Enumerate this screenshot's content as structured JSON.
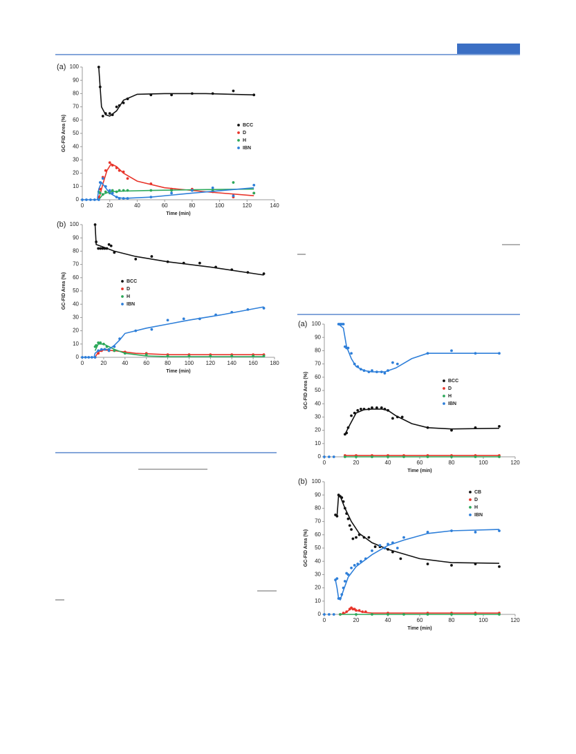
{
  "chart_data": [
    {
      "type": "scatter",
      "label": "(a)",
      "x_label": "Time (min)",
      "y_label": "GC-FID Area (%)",
      "xlim": [
        0,
        140
      ],
      "xticks": [
        0,
        20,
        40,
        60,
        80,
        100,
        120,
        140
      ],
      "ylim": [
        0,
        100
      ],
      "yticks": [
        0,
        10,
        20,
        30,
        40,
        50,
        60,
        70,
        80,
        90,
        100
      ],
      "series": [
        {
          "name": "BCC",
          "color": "#111111",
          "x": [
            12,
            13,
            15,
            17,
            20,
            22,
            25,
            27,
            30,
            33,
            50,
            65,
            80,
            95,
            110,
            125
          ],
          "values": [
            100,
            85,
            63,
            65,
            65,
            64,
            70,
            71,
            73,
            76,
            79,
            79,
            80,
            80,
            82,
            79
          ],
          "fit": {
            "x": [
              12,
              14,
              17,
              20,
              25,
              30,
              40,
              60,
              90,
              125
            ],
            "values": [
              100,
              70,
              64,
              63,
              67,
              75,
              79.5,
              80,
              80,
              79
            ]
          }
        },
        {
          "name": "D",
          "color": "#e8342a",
          "x": [
            12,
            13,
            15,
            17,
            20,
            22,
            25,
            27,
            30,
            33,
            50,
            65,
            80,
            95,
            110,
            125
          ],
          "values": [
            2,
            8,
            17,
            22,
            28,
            26,
            24,
            22,
            21,
            16,
            12,
            8,
            8,
            6,
            2,
            5
          ],
          "fit": {
            "x": [
              12,
              15,
              18,
              21,
              25,
              30,
              40,
              60,
              90,
              125
            ],
            "values": [
              0,
              12,
              22,
              27,
              25,
              20,
              14,
              9,
              6,
              3
            ]
          }
        },
        {
          "name": "H",
          "color": "#2ca85a",
          "x": [
            12,
            13,
            15,
            17,
            20,
            22,
            25,
            27,
            30,
            33,
            50,
            65,
            80,
            95,
            110,
            125
          ],
          "values": [
            6,
            5,
            4,
            6,
            5,
            7,
            6,
            7,
            7,
            7,
            7,
            7,
            7,
            7,
            13,
            5
          ],
          "fit": {
            "x": [
              12,
              15,
              20,
              30,
              50,
              80,
              125
            ],
            "values": [
              0,
              4,
              6,
              6.5,
              7,
              7.5,
              8
            ]
          }
        },
        {
          "name": "IBN",
          "color": "#2e7fd9",
          "x": [
            0,
            3,
            6,
            9,
            12,
            13,
            15,
            17,
            20,
            22,
            25,
            27,
            30,
            33,
            50,
            65,
            80,
            95,
            110,
            125
          ],
          "values": [
            0,
            0,
            0,
            0,
            0,
            13,
            16,
            10,
            7,
            5,
            2,
            1,
            1,
            1,
            2,
            5,
            7,
            9,
            3,
            11
          ],
          "fit": {
            "x": [
              0,
              11,
              12,
              14,
              17,
              20,
              25,
              30,
              50,
              80,
              125
            ],
            "values": [
              0,
              0,
              8,
              13,
              9,
              5,
              2,
              1,
              2,
              5,
              9
            ]
          }
        }
      ]
    },
    {
      "type": "scatter",
      "label": "(b)",
      "x_label": "Time (min)",
      "y_label": "GC-FID Area (%)",
      "xlim": [
        0,
        180
      ],
      "xticks": [
        0,
        20,
        40,
        60,
        80,
        100,
        120,
        140,
        160,
        180
      ],
      "ylim": [
        0,
        100
      ],
      "yticks": [
        0,
        10,
        20,
        30,
        40,
        50,
        60,
        70,
        80,
        90,
        100
      ],
      "series": [
        {
          "name": "BCC",
          "color": "#111111",
          "x": [
            12,
            13,
            15,
            17,
            19,
            21,
            23,
            25,
            27,
            30,
            50,
            65,
            80,
            95,
            110,
            125,
            140,
            155,
            170
          ],
          "values": [
            100,
            87,
            82,
            82,
            82,
            82,
            82,
            85,
            84,
            79,
            74,
            76,
            72,
            71,
            71,
            68,
            66,
            64,
            63
          ],
          "fit": {
            "x": [
              12,
              13,
              20,
              30,
              50,
              80,
              120,
              170
            ],
            "values": [
              100,
              85,
              83,
              80,
              76,
              72,
              68,
              62
            ]
          }
        },
        {
          "name": "D",
          "color": "#e8342a",
          "x": [
            12,
            15,
            18,
            21,
            25,
            30,
            40,
            60,
            80,
            100,
            120,
            140,
            160,
            170
          ],
          "values": [
            0,
            3,
            5,
            6,
            5,
            5,
            4,
            3,
            2,
            2,
            2,
            2,
            2,
            2
          ],
          "fit": {
            "x": [
              12,
              15,
              20,
              30,
              50,
              80,
              170
            ],
            "values": [
              0,
              4,
              5.5,
              5,
              3,
              2,
              2
            ]
          }
        },
        {
          "name": "H",
          "color": "#2ca85a",
          "x": [
            12,
            13,
            15,
            17,
            20,
            23,
            25,
            30,
            40,
            60,
            80,
            100,
            120,
            140,
            160,
            170
          ],
          "values": [
            8,
            9,
            11,
            11,
            10,
            8,
            6,
            5,
            3,
            2,
            1,
            1,
            1,
            1,
            1,
            1
          ],
          "fit": {
            "x": [
              12,
              15,
              20,
              25,
              30,
              40,
              60,
              80,
              170
            ],
            "values": [
              5,
              10,
              10,
              8,
              6,
              3,
              1,
              0.5,
              0.5
            ]
          }
        },
        {
          "name": "IBN",
          "color": "#2e7fd9",
          "x": [
            0,
            3,
            6,
            9,
            12,
            15,
            18,
            21,
            25,
            30,
            35,
            50,
            65,
            80,
            95,
            110,
            125,
            140,
            155,
            170
          ],
          "values": [
            0,
            0,
            0,
            0,
            0,
            5,
            6,
            6,
            5,
            8,
            14,
            20,
            21,
            28,
            29,
            29,
            32,
            34,
            36,
            37
          ],
          "fit": {
            "x": [
              0,
              11,
              12,
              15,
              20,
              25,
              30,
              35,
              40,
              60,
              80,
              100,
              130,
              170
            ],
            "values": [
              0,
              0,
              3,
              5,
              6,
              6,
              9,
              13,
              18,
              22,
              25,
              28,
              32,
              38
            ]
          }
        }
      ]
    },
    {
      "type": "scatter",
      "label": "(a)",
      "x_label": "Time (min)",
      "y_label": "GC-FID Area (%)",
      "xlim": [
        0,
        120
      ],
      "xticks": [
        0,
        20,
        40,
        60,
        80,
        100,
        120
      ],
      "ylim": [
        0,
        100
      ],
      "yticks": [
        0,
        10,
        20,
        30,
        40,
        50,
        60,
        70,
        80,
        90,
        100
      ],
      "series": [
        {
          "name": "BCC",
          "color": "#111111",
          "x": [
            13,
            14,
            15,
            17,
            19,
            21,
            23,
            25,
            28,
            30,
            33,
            36,
            38,
            40,
            43,
            46,
            49,
            65,
            80,
            95,
            110
          ],
          "values": [
            17,
            18,
            22,
            31,
            33,
            35,
            36,
            36,
            36,
            37,
            37,
            37,
            36,
            35,
            29,
            30,
            30,
            22,
            20,
            22,
            23
          ],
          "fit": {
            "x": [
              13,
              16,
              20,
              25,
              30,
              36,
              40,
              45,
              55,
              65,
              80,
              110
            ],
            "values": [
              17,
              24,
              33,
              35.5,
              36,
              36,
              35,
              31,
              25,
              22,
              21,
              21.5
            ]
          }
        },
        {
          "name": "D",
          "color": "#e8342a",
          "x": [
            13,
            20,
            30,
            40,
            50,
            65,
            80,
            95,
            110
          ],
          "values": [
            1,
            1,
            1,
            1,
            1,
            1,
            1,
            1,
            1
          ],
          "fit": {
            "x": [
              13,
              110
            ],
            "values": [
              1,
              1
            ]
          }
        },
        {
          "name": "H",
          "color": "#2ca85a",
          "x": [
            13,
            20,
            30,
            40,
            50,
            65,
            80,
            95,
            110
          ],
          "values": [
            0,
            0,
            0,
            0,
            0,
            0,
            0,
            0,
            0
          ],
          "fit": {
            "x": [
              13,
              110
            ],
            "values": [
              0,
              0
            ]
          }
        },
        {
          "name": "IBN",
          "color": "#2e7fd9",
          "x": [
            0,
            3,
            6,
            9,
            10,
            11,
            12,
            13,
            14,
            15,
            17,
            19,
            21,
            23,
            25,
            28,
            30,
            33,
            36,
            38,
            40,
            43,
            46,
            65,
            80,
            95,
            110
          ],
          "values": [
            0,
            0,
            0,
            100,
            100,
            100,
            100,
            83,
            82,
            82,
            78,
            70,
            68,
            66,
            65,
            64,
            65,
            64,
            64,
            63,
            65,
            71,
            70,
            78,
            80,
            78,
            78
          ],
          "fit": {
            "x": [
              9,
              12,
              14,
              17,
              20,
              25,
              30,
              38,
              45,
              55,
              65,
              110
            ],
            "values": [
              100,
              97,
              83,
              74,
              68,
              65,
              64,
              64,
              67,
              74,
              78,
              78
            ]
          }
        }
      ]
    },
    {
      "type": "scatter",
      "label": "(b)",
      "x_label": "Time (min)",
      "y_label": "GC-FID Area (%)",
      "xlim": [
        0,
        120
      ],
      "xticks": [
        0,
        20,
        40,
        60,
        80,
        100,
        120
      ],
      "ylim": [
        0,
        100
      ],
      "yticks": [
        0,
        10,
        20,
        30,
        40,
        50,
        60,
        70,
        80,
        90,
        100
      ],
      "series": [
        {
          "name": "CB",
          "color": "#111111",
          "x": [
            7,
            8,
            9,
            10,
            11,
            12,
            13,
            14,
            15,
            16,
            17,
            18,
            20,
            22,
            25,
            28,
            32,
            35,
            38,
            40,
            43,
            48,
            65,
            80,
            95,
            110
          ],
          "values": [
            75,
            74,
            90,
            89,
            88,
            85,
            80,
            76,
            72,
            67,
            64,
            57,
            58,
            60,
            58,
            58,
            51,
            51,
            50,
            49,
            47,
            42,
            38,
            37,
            38,
            36
          ],
          "fit": {
            "x": [
              7,
              8,
              9,
              10,
              13,
              17,
              22,
              30,
              40,
              60,
              80,
              110
            ],
            "values": [
              75,
              74,
              90,
              89,
              80,
              70,
              61,
              54,
              49,
              42,
              39,
              38.5
            ]
          }
        },
        {
          "name": "D",
          "color": "#e8342a",
          "x": [
            10,
            12,
            14,
            16,
            17,
            18,
            19,
            20,
            22,
            24,
            26,
            40,
            65,
            80,
            95,
            110
          ],
          "values": [
            0,
            1,
            2,
            4,
            5,
            4,
            4,
            3,
            3,
            2,
            2,
            1,
            1,
            1,
            1,
            1
          ],
          "fit": {
            "x": [
              10,
              13,
              17,
              20,
              25,
              30,
              110
            ],
            "values": [
              0,
              1,
              4.5,
              3,
              1.5,
              1,
              1
            ]
          }
        },
        {
          "name": "H",
          "color": "#2ca85a",
          "x": [
            10,
            20,
            30,
            40,
            50,
            65,
            80,
            95,
            110
          ],
          "values": [
            0,
            0,
            0,
            0,
            0,
            0,
            0,
            0,
            0
          ],
          "fit": {
            "x": [
              10,
              110
            ],
            "values": [
              0,
              0
            ]
          }
        },
        {
          "name": "IBN",
          "color": "#2e7fd9",
          "x": [
            0,
            3,
            6,
            7,
            8,
            9,
            10,
            11,
            12,
            13,
            14,
            15,
            17,
            19,
            21,
            23,
            26,
            30,
            35,
            38,
            40,
            43,
            46,
            50,
            65,
            80,
            95,
            110
          ],
          "values": [
            0,
            0,
            0,
            26,
            27,
            12,
            12,
            15,
            20,
            25,
            31,
            30,
            35,
            37,
            38,
            40,
            42,
            48,
            52,
            50,
            53,
            54,
            50,
            58,
            62,
            63,
            62,
            63
          ],
          "fit": {
            "x": [
              7,
              8,
              9,
              10,
              12,
              15,
              20,
              30,
              40,
              50,
              65,
              80,
              110
            ],
            "values": [
              26,
              20,
              12,
              11,
              18,
              28,
              36,
              45,
              52,
              56,
              61,
              63,
              64
            ]
          }
        }
      ]
    }
  ]
}
